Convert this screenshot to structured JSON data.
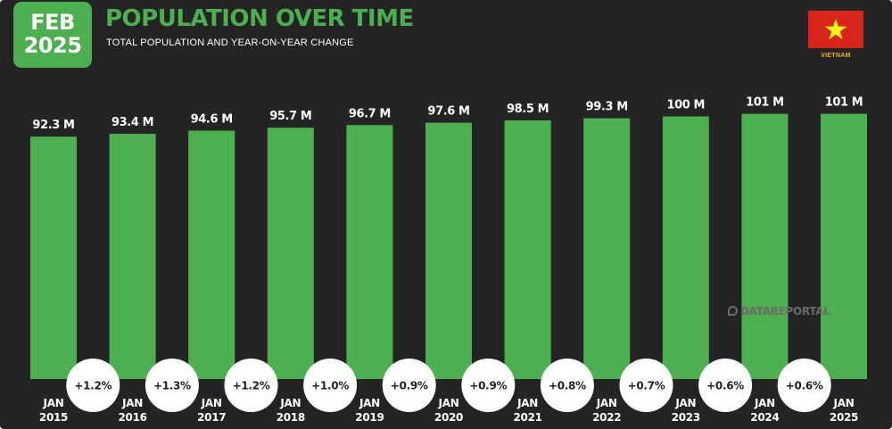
{
  "header": {
    "date_badge": {
      "month": "FEB",
      "year": "2025"
    },
    "title": "POPULATION OVER TIME",
    "subtitle": "TOTAL POPULATION AND YEAR-ON-YEAR CHANGE",
    "country": "VIETNAM",
    "flag_icon": "vietnam-flag-icon",
    "watermark": "DATAREPORTAL"
  },
  "colors": {
    "background": "#242424",
    "accent": "#4caf50",
    "text": "#ffffff",
    "flag_red": "#da251d",
    "flag_star": "#ffff00",
    "bubble": "#ffffff",
    "bubble_text": "#222222"
  },
  "chart_data": {
    "type": "bar",
    "categories": [
      "JAN 2015",
      "JAN 2016",
      "JAN 2017",
      "JAN 2018",
      "JAN 2019",
      "JAN 2020",
      "JAN 2021",
      "JAN 2022",
      "JAN 2023",
      "JAN 2024",
      "JAN 2025"
    ],
    "category_lines": [
      [
        "JAN",
        "2015"
      ],
      [
        "JAN",
        "2016"
      ],
      [
        "JAN",
        "2017"
      ],
      [
        "JAN",
        "2018"
      ],
      [
        "JAN",
        "2019"
      ],
      [
        "JAN",
        "2020"
      ],
      [
        "JAN",
        "2021"
      ],
      [
        "JAN",
        "2022"
      ],
      [
        "JAN",
        "2023"
      ],
      [
        "JAN",
        "2024"
      ],
      [
        "JAN",
        "2025"
      ]
    ],
    "values": [
      92.3,
      93.4,
      94.6,
      95.7,
      96.7,
      97.6,
      98.5,
      99.3,
      100,
      101,
      101
    ],
    "value_labels": [
      "92.3 M",
      "93.4 M",
      "94.6 M",
      "95.7 M",
      "96.7 M",
      "97.6 M",
      "98.5 M",
      "99.3 M",
      "100 M",
      "101 M",
      "101 M"
    ],
    "yoy_change_labels": [
      "+1.2%",
      "+1.3%",
      "+1.2%",
      "+1.0%",
      "+0.9%",
      "+0.9%",
      "+0.8%",
      "+0.7%",
      "+0.6%",
      "+0.6%"
    ],
    "ylim": [
      0,
      101.2
    ],
    "unit": "M",
    "grid": false,
    "legend": "none"
  }
}
